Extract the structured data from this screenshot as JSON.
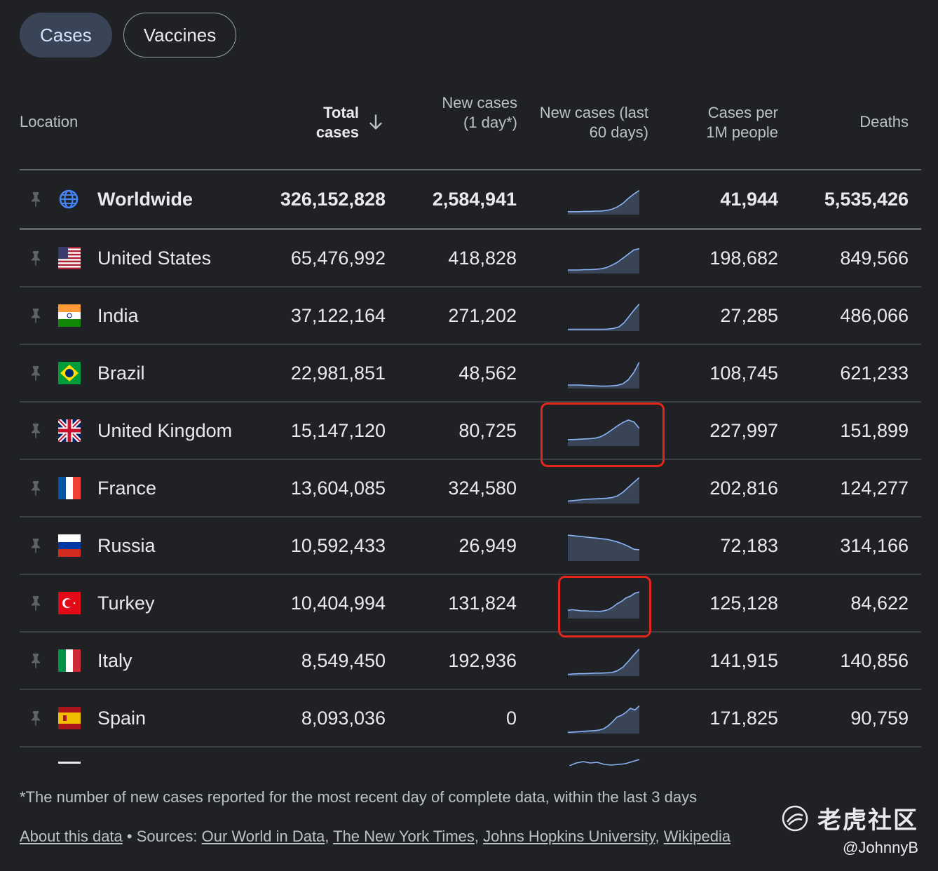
{
  "tabs": [
    {
      "label": "Cases",
      "active": true
    },
    {
      "label": "Vaccines",
      "active": false
    }
  ],
  "columns": {
    "location": "Location",
    "total_cases": "Total cases",
    "new_cases": "New cases (1 day*)",
    "new_cases_60": "New cases (last 60 days)",
    "cases_per_1m": "Cases per 1M people",
    "deaths": "Deaths"
  },
  "rows": [
    {
      "location": "Worldwide",
      "flag": "globe-icon",
      "total": "326,152,828",
      "new": "2,584,941",
      "per_1m": "41,944",
      "deaths": "5,535,426",
      "trend": [
        10,
        10,
        10,
        11,
        11,
        12,
        12,
        14,
        18,
        26,
        38,
        55,
        70,
        82
      ]
    },
    {
      "location": "United States",
      "flag": "us-flag-icon",
      "total": "65,476,992",
      "new": "418,828",
      "per_1m": "198,682",
      "deaths": "849,566",
      "trend": [
        12,
        12,
        12,
        13,
        13,
        14,
        16,
        20,
        28,
        38,
        52,
        66,
        80,
        84
      ]
    },
    {
      "location": "India",
      "flag": "india-flag-icon",
      "total": "37,122,164",
      "new": "271,202",
      "per_1m": "27,285",
      "deaths": "486,066",
      "trend": [
        6,
        6,
        6,
        6,
        6,
        6,
        6,
        6,
        7,
        9,
        14,
        28,
        50,
        72,
        92
      ]
    },
    {
      "location": "Brazil",
      "flag": "brazil-flag-icon",
      "total": "22,981,851",
      "new": "48,562",
      "per_1m": "108,745",
      "deaths": "621,233",
      "trend": [
        12,
        12,
        12,
        11,
        10,
        9,
        8,
        8,
        9,
        11,
        16,
        30,
        55,
        90
      ]
    },
    {
      "location": "United Kingdom",
      "flag": "uk-flag-icon",
      "total": "15,147,120",
      "new": "80,725",
      "per_1m": "227,997",
      "deaths": "151,899",
      "trend": [
        22,
        22,
        23,
        24,
        25,
        27,
        32,
        42,
        55,
        68,
        80,
        88,
        82,
        60
      ]
    },
    {
      "location": "France",
      "flag": "france-flag-icon",
      "total": "13,604,085",
      "new": "324,580",
      "per_1m": "202,816",
      "deaths": "124,277",
      "trend": [
        8,
        10,
        12,
        14,
        15,
        16,
        17,
        18,
        20,
        26,
        38,
        55,
        72,
        88
      ]
    },
    {
      "location": "Russia",
      "flag": "russia-flag-icon",
      "total": "10,592,433",
      "new": "26,949",
      "per_1m": "72,183",
      "deaths": "314,166",
      "trend": [
        88,
        86,
        84,
        82,
        80,
        78,
        76,
        74,
        70,
        65,
        58,
        50,
        40,
        38
      ]
    },
    {
      "location": "Turkey",
      "flag": "turkey-flag-icon",
      "total": "10,404,994",
      "new": "131,824",
      "per_1m": "125,128",
      "deaths": "84,622",
      "trend": [
        28,
        30,
        28,
        26,
        26,
        25,
        25,
        24,
        26,
        30,
        38,
        50,
        58,
        70,
        76,
        86,
        90
      ]
    },
    {
      "location": "Italy",
      "flag": "italy-flag-icon",
      "total": "8,549,450",
      "new": "192,936",
      "per_1m": "141,915",
      "deaths": "140,856",
      "trend": [
        6,
        7,
        8,
        8,
        9,
        10,
        10,
        11,
        12,
        18,
        30,
        50,
        72,
        92
      ]
    },
    {
      "location": "Spain",
      "flag": "spain-flag-icon",
      "total": "8,093,036",
      "new": "0",
      "per_1m": "171,825",
      "deaths": "90,759",
      "trend": [
        4,
        5,
        6,
        7,
        8,
        9,
        10,
        12,
        16,
        26,
        40,
        56,
        62,
        72,
        86,
        80,
        94
      ]
    }
  ],
  "footnote": "*The number of new cases reported for the most recent day of complete data, within the last 3 days",
  "sources": {
    "about": "About this data",
    "separator": " • Sources: ",
    "links": [
      "Our World in Data",
      "The New York Times",
      "Johns Hopkins University",
      "Wikipedia"
    ]
  },
  "watermark": {
    "text": "老虎社区",
    "handle": "@JohnnyB"
  },
  "colors": {
    "highlight": "#e3261b",
    "spark_line": "#8ab4f8",
    "spark_fill": "#394457",
    "active_tab": "#394457"
  }
}
